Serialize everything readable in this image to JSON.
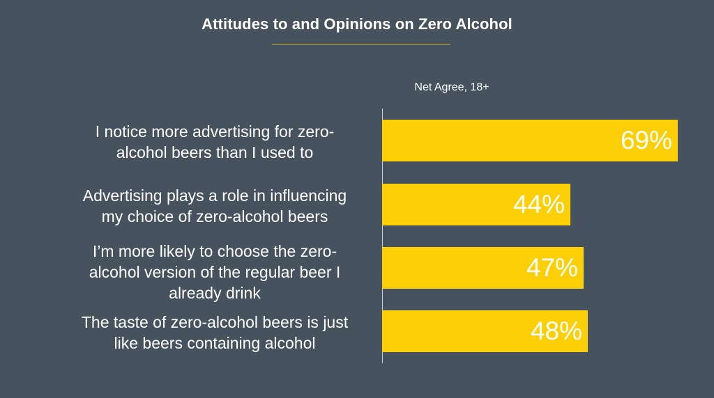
{
  "chart_data": {
    "type": "bar",
    "orientation": "horizontal",
    "title": "Attitudes to and Opinions on Zero Alcohol",
    "subtitle": "Net Agree, 18+",
    "categories": [
      [
        "I notice more advertising for zero-",
        "alcohol beers than I used to"
      ],
      [
        "Advertising plays a role in influencing",
        "my choice of zero-alcohol beers"
      ],
      [
        "I’m more likely to choose the zero-",
        "alcohol version of the regular beer I",
        "already drink"
      ],
      [
        "The taste of zero-alcohol beers is just",
        "like beers containing alcohol"
      ]
    ],
    "values": [
      69,
      44,
      47,
      48
    ],
    "value_labels": [
      "69%",
      "44%",
      "47%",
      "48%"
    ],
    "xlim": [
      0,
      69
    ],
    "xlabel": "",
    "ylabel": "",
    "grid": false,
    "legend": "none",
    "bar_color": "#fccf06",
    "background_color": "#46535e"
  }
}
